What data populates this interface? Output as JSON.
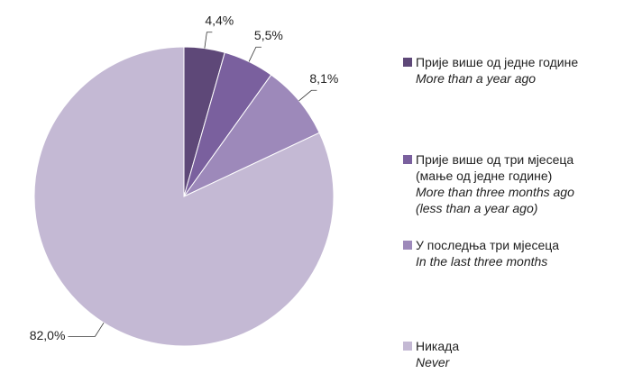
{
  "chart_data": {
    "type": "pie",
    "categories": [
      "Прије више од једне године",
      "Прије више од три мјесеца (мање од једне године)",
      "У последња три мјесеца",
      "Никада"
    ],
    "categories_english": [
      "More than a year ago",
      "More than three months ago (less than a year ago)",
      "In the last three months",
      "Never"
    ],
    "values": [
      4.4,
      5.5,
      8.1,
      82.0
    ],
    "value_labels": [
      "4,4%",
      "5,5%",
      "8,1%",
      "82,0%"
    ],
    "colors": [
      "#5e4878",
      "#7a609e",
      "#9d89ba",
      "#c4b9d4"
    ],
    "legend": "right"
  }
}
